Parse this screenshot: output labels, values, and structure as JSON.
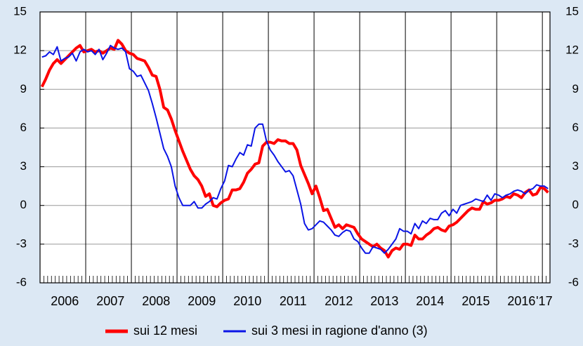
{
  "chart_data": {
    "type": "line",
    "categories": [
      null,
      null,
      null,
      null,
      null,
      null,
      "2006",
      null,
      null,
      null,
      null,
      null,
      null,
      null,
      null,
      null,
      null,
      null,
      "2007",
      null,
      null,
      null,
      null,
      null,
      null,
      null,
      null,
      null,
      null,
      null,
      "2008",
      null,
      null,
      null,
      null,
      null,
      null,
      null,
      null,
      null,
      null,
      null,
      "2009",
      null,
      null,
      null,
      null,
      null,
      null,
      null,
      null,
      null,
      null,
      null,
      "2010",
      null,
      null,
      null,
      null,
      null,
      null,
      null,
      null,
      null,
      null,
      null,
      "2011",
      null,
      null,
      null,
      null,
      null,
      null,
      null,
      null,
      null,
      null,
      null,
      "2012",
      null,
      null,
      null,
      null,
      null,
      null,
      null,
      null,
      null,
      null,
      null,
      "2013",
      null,
      null,
      null,
      null,
      null,
      null,
      null,
      null,
      null,
      null,
      null,
      "2014",
      null,
      null,
      null,
      null,
      null,
      null,
      null,
      null,
      null,
      null,
      null,
      "2015",
      null,
      null,
      null,
      null,
      null,
      null,
      null,
      null,
      null,
      null,
      null,
      "2016",
      null,
      null,
      null,
      null,
      null,
      "'17",
      null
    ],
    "series": [
      {
        "name": "sui 12 mesi",
        "color": "#ff0000",
        "width": 4,
        "values": [
          9.2,
          9.8,
          10.5,
          11.0,
          11.3,
          11.0,
          11.3,
          11.6,
          11.9,
          12.2,
          12.4,
          11.9,
          12.0,
          12.1,
          11.9,
          12.0,
          11.8,
          12.0,
          12.2,
          12.1,
          12.8,
          12.5,
          12.0,
          11.8,
          11.7,
          11.4,
          11.3,
          11.2,
          10.7,
          10.1,
          10.0,
          9.0,
          7.6,
          7.4,
          6.7,
          5.8,
          5.0,
          4.2,
          3.5,
          2.8,
          2.3,
          2.0,
          1.5,
          0.7,
          0.9,
          0.0,
          -0.1,
          0.2,
          0.4,
          0.5,
          1.2,
          1.2,
          1.3,
          1.8,
          2.5,
          2.8,
          3.2,
          3.3,
          4.6,
          4.9,
          4.9,
          4.8,
          5.1,
          5.0,
          5.0,
          4.8,
          4.8,
          4.3,
          3.1,
          2.4,
          1.7,
          0.9,
          1.5,
          0.6,
          -0.4,
          -0.3,
          -1.0,
          -1.7,
          -1.5,
          -1.8,
          -1.5,
          -1.6,
          -1.7,
          -2.2,
          -2.6,
          -2.8,
          -3.0,
          -3.2,
          -3.0,
          -3.3,
          -3.5,
          -4.0,
          -3.5,
          -3.3,
          -3.4,
          -3.0,
          -3.0,
          -3.1,
          -2.3,
          -2.6,
          -2.6,
          -2.3,
          -2.1,
          -1.8,
          -1.7,
          -1.9,
          -2.0,
          -1.6,
          -1.5,
          -1.3,
          -1.0,
          -0.7,
          -0.4,
          -0.2,
          -0.3,
          -0.3,
          0.3,
          0.1,
          0.2,
          0.4,
          0.4,
          0.5,
          0.7,
          0.6,
          0.9,
          0.8,
          0.6,
          1.0,
          1.2,
          0.8,
          0.9,
          1.4,
          1.3,
          1.0
        ]
      },
      {
        "name": "sui 3 mesi in ragione d'anno (3)",
        "color": "#0a14e6",
        "width": 2,
        "values": [
          11.5,
          11.6,
          11.9,
          11.7,
          12.3,
          11.2,
          11.4,
          11.5,
          11.8,
          11.2,
          11.9,
          12.1,
          11.9,
          12.0,
          11.7,
          12.1,
          11.3,
          11.8,
          12.4,
          12.2,
          12.1,
          12.2,
          11.9,
          10.6,
          10.4,
          10.0,
          10.1,
          9.5,
          8.9,
          7.9,
          6.8,
          5.6,
          4.4,
          3.8,
          3.0,
          1.5,
          0.6,
          0.0,
          0.0,
          0.0,
          0.3,
          -0.2,
          -0.2,
          0.1,
          0.3,
          0.6,
          0.5,
          1.3,
          1.9,
          3.1,
          3.0,
          3.6,
          4.1,
          3.9,
          4.7,
          4.6,
          6.0,
          6.3,
          6.3,
          5.0,
          4.3,
          3.9,
          3.4,
          3.0,
          2.6,
          2.7,
          2.3,
          1.2,
          0.1,
          -1.4,
          -1.9,
          -1.8,
          -1.5,
          -1.2,
          -1.3,
          -1.6,
          -1.9,
          -2.3,
          -2.4,
          -2.1,
          -1.9,
          -2.0,
          -2.6,
          -2.8,
          -3.3,
          -3.7,
          -3.7,
          -3.2,
          -3.3,
          -3.4,
          -3.7,
          -3.4,
          -3.0,
          -2.6,
          -1.8,
          -2.0,
          -2.0,
          -2.2,
          -1.4,
          -1.8,
          -1.2,
          -1.4,
          -1.0,
          -1.1,
          -1.1,
          -0.6,
          -0.4,
          -0.8,
          -0.3,
          -0.6,
          0.0,
          0.1,
          0.2,
          0.3,
          0.5,
          0.4,
          0.3,
          0.8,
          0.4,
          0.9,
          0.8,
          0.6,
          0.8,
          0.9,
          1.1,
          1.2,
          1.1,
          0.9,
          1.2,
          1.3,
          1.6,
          1.5,
          1.5,
          1.3
        ]
      }
    ],
    "ylim": [
      -6,
      15
    ],
    "yticks": [
      -6,
      -3,
      0,
      3,
      6,
      9,
      12,
      15
    ],
    "y2lim": [
      -6,
      15
    ],
    "y2ticks": [
      -6,
      -3,
      0,
      3,
      6,
      9,
      12,
      15
    ],
    "grid": true,
    "legend": "bottom"
  }
}
